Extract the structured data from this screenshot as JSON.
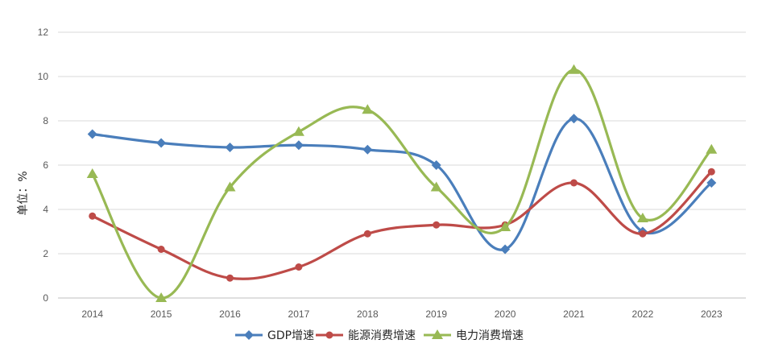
{
  "chart_data": {
    "type": "line",
    "title": "",
    "xlabel": "",
    "ylabel": "单位：%",
    "ylim": [
      0,
      12
    ],
    "yticks": [
      0,
      2,
      4,
      6,
      8,
      10,
      12
    ],
    "grid": true,
    "legend_position": "bottom",
    "categories": [
      "2014",
      "2015",
      "2016",
      "2017",
      "2018",
      "2019",
      "2020",
      "2021",
      "2022",
      "2023"
    ],
    "series": [
      {
        "name": "GDP增速",
        "color": "#4a7ebb",
        "marker": "diamond",
        "values": [
          7.4,
          7.0,
          6.8,
          6.9,
          6.7,
          6.0,
          2.2,
          8.1,
          3.0,
          5.2
        ]
      },
      {
        "name": "能源消费增速",
        "color": "#be4b48",
        "marker": "circle",
        "values": [
          3.7,
          2.2,
          0.9,
          1.4,
          2.9,
          3.3,
          3.3,
          5.2,
          2.9,
          5.7
        ]
      },
      {
        "name": "电力消费增速",
        "color": "#98b954",
        "marker": "triangle",
        "values": [
          5.6,
          0.0,
          5.0,
          7.5,
          8.5,
          5.0,
          3.2,
          10.3,
          3.6,
          6.7
        ]
      }
    ]
  }
}
